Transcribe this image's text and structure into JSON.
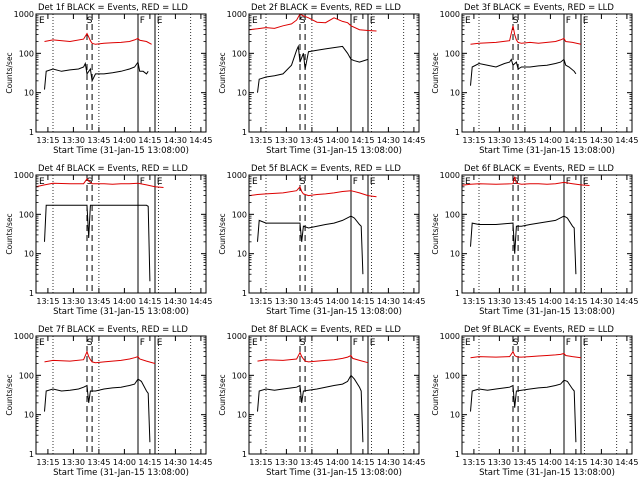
{
  "figure": {
    "background": "#ffffff",
    "colors": {
      "events": "#000000",
      "lld": "#dd0000",
      "axes": "#000000"
    },
    "common": {
      "title_suffix": "BLACK = Events, RED = LLD",
      "ylabel": "Counts/sec",
      "xlabel": "Start Time (31-Jan-15 13:08:00)",
      "x_ticks": [
        "13:15",
        "13:30",
        "13:45",
        "14:00",
        "14:15",
        "14:30",
        "14:45"
      ],
      "y_ticks": [
        "1",
        "10",
        "100",
        "1000"
      ],
      "markers": {
        "E": "E",
        "S": "S",
        "F": "F"
      }
    }
  },
  "chart_data": [
    {
      "type": "line",
      "detector": "1f",
      "title": "Det 1f BLACK = Events, RED = LLD",
      "xlabel": "Start Time (31-Jan-15 13:08:00)",
      "ylabel": "Counts/sec",
      "yscale": "log",
      "ylim": [
        1,
        1000
      ],
      "x_minutes_from_1308": [
        0,
        100
      ],
      "dotted_lines": [
        10,
        37,
        72,
        91
      ],
      "dashed_lines": [
        30,
        33
      ],
      "solid_lines": [
        60,
        70
      ],
      "series": [
        {
          "x": [
            5,
            10,
            20,
            28,
            30,
            31,
            32,
            33,
            35,
            40,
            45,
            50,
            55,
            58,
            60,
            61,
            65,
            68
          ],
          "y": [
            200,
            220,
            200,
            230,
            320,
            260,
            210,
            180,
            170,
            180,
            185,
            190,
            200,
            220,
            240,
            215,
            200,
            170
          ],
          "color": "#dd0000"
        },
        {
          "x": [
            5,
            6,
            10,
            15,
            20,
            25,
            28,
            29,
            30,
            32,
            33,
            35,
            40,
            45,
            50,
            55,
            58,
            60,
            61,
            63,
            65,
            66
          ],
          "y": [
            12,
            35,
            40,
            35,
            38,
            40,
            45,
            55,
            30,
            40,
            20,
            30,
            30,
            32,
            35,
            40,
            45,
            60,
            35,
            35,
            30,
            35
          ],
          "color": "#000000"
        }
      ]
    },
    {
      "type": "line",
      "detector": "2f",
      "title": "Det 2f BLACK = Events, RED = LLD",
      "xlabel": "Start Time (31-Jan-15 13:08:00)",
      "ylabel": "Counts/sec",
      "yscale": "log",
      "ylim": [
        1,
        1000
      ],
      "x_minutes_from_1308": [
        0,
        100
      ],
      "dotted_lines": [
        10,
        37,
        72,
        91
      ],
      "dashed_lines": [
        30,
        33
      ],
      "solid_lines": [
        60,
        70
      ],
      "series": [
        {
          "x": [
            0,
            5,
            10,
            15,
            20,
            25,
            28,
            30,
            32,
            35,
            40,
            45,
            50,
            55,
            58,
            60,
            65,
            70,
            75
          ],
          "y": [
            400,
            420,
            450,
            430,
            500,
            560,
            700,
            1000,
            900,
            800,
            620,
            600,
            800,
            650,
            600,
            500,
            400,
            380,
            370
          ],
          "color": "#dd0000"
        },
        {
          "x": [
            5,
            6,
            10,
            15,
            20,
            25,
            28,
            29,
            30,
            32,
            33,
            35,
            40,
            45,
            50,
            55,
            58,
            60,
            62,
            65,
            70
          ],
          "y": [
            10,
            22,
            25,
            27,
            30,
            50,
            120,
            150,
            60,
            100,
            40,
            110,
            120,
            130,
            140,
            150,
            100,
            70,
            65,
            60,
            70
          ],
          "color": "#000000"
        }
      ]
    },
    {
      "type": "line",
      "detector": "3f",
      "title": "Det 3f BLACK = Events, RED = LLD",
      "xlabel": "Start Time (31-Jan-15 13:08:00)",
      "ylabel": "Counts/sec",
      "yscale": "log",
      "ylim": [
        1,
        1000
      ],
      "x_minutes_from_1308": [
        0,
        100
      ],
      "dotted_lines": [
        10,
        37,
        72,
        91
      ],
      "dashed_lines": [
        30,
        33
      ],
      "solid_lines": [
        60,
        70
      ],
      "series": [
        {
          "x": [
            5,
            10,
            20,
            28,
            30,
            31,
            32,
            33,
            35,
            40,
            45,
            50,
            55,
            58,
            60,
            61,
            65,
            70
          ],
          "y": [
            170,
            180,
            190,
            210,
            500,
            300,
            220,
            190,
            180,
            190,
            180,
            190,
            200,
            220,
            240,
            200,
            190,
            170
          ],
          "color": "#dd0000"
        },
        {
          "x": [
            5,
            6,
            10,
            15,
            20,
            25,
            28,
            29,
            30,
            32,
            33,
            35,
            40,
            45,
            50,
            55,
            58,
            60,
            61,
            63,
            66,
            67
          ],
          "y": [
            15,
            45,
            55,
            50,
            45,
            55,
            60,
            70,
            50,
            60,
            40,
            45,
            45,
            48,
            50,
            55,
            60,
            70,
            50,
            45,
            35,
            30
          ],
          "color": "#000000"
        }
      ]
    },
    {
      "type": "line",
      "detector": "4f",
      "title": "Det 4f BLACK = Events, RED = LLD",
      "xlabel": "Start Time (31-Jan-15 13:08:00)",
      "ylabel": "Counts/sec",
      "yscale": "log",
      "ylim": [
        1,
        1000
      ],
      "x_minutes_from_1308": [
        0,
        100
      ],
      "dotted_lines": [
        10,
        37,
        72,
        91
      ],
      "dashed_lines": [
        30,
        33
      ],
      "solid_lines": [
        60,
        70
      ],
      "series": [
        {
          "x": [
            0,
            5,
            10,
            20,
            28,
            30,
            31,
            32,
            33,
            35,
            40,
            45,
            50,
            55,
            60,
            65,
            70,
            75
          ],
          "y": [
            500,
            560,
            620,
            600,
            600,
            800,
            700,
            650,
            600,
            600,
            600,
            580,
            600,
            600,
            620,
            560,
            500,
            480
          ],
          "color": "#dd0000"
        },
        {
          "x": [
            5,
            6,
            10,
            20,
            30,
            31,
            32,
            40,
            50,
            60,
            62,
            65,
            66,
            67
          ],
          "y": [
            20,
            170,
            170,
            170,
            170,
            25,
            170,
            170,
            170,
            170,
            170,
            170,
            160,
            2
          ],
          "color": "#000000"
        }
      ]
    },
    {
      "type": "line",
      "detector": "5f",
      "title": "Det 5f BLACK = Events, RED = LLD",
      "xlabel": "Start Time (31-Jan-15 13:08:00)",
      "ylabel": "Counts/sec",
      "yscale": "log",
      "ylim": [
        1,
        1000
      ],
      "x_minutes_from_1308": [
        0,
        100
      ],
      "dotted_lines": [
        10,
        37,
        72,
        91
      ],
      "dashed_lines": [
        30,
        33
      ],
      "solid_lines": [
        60,
        70
      ],
      "series": [
        {
          "x": [
            0,
            5,
            10,
            20,
            28,
            30,
            31,
            32,
            33,
            35,
            40,
            45,
            50,
            55,
            60,
            65,
            70,
            75
          ],
          "y": [
            300,
            320,
            330,
            350,
            400,
            500,
            380,
            330,
            320,
            300,
            320,
            330,
            350,
            380,
            400,
            350,
            300,
            280
          ],
          "color": "#dd0000"
        },
        {
          "x": [
            5,
            6,
            10,
            20,
            30,
            31,
            32,
            35,
            40,
            45,
            50,
            55,
            60,
            62,
            65,
            66,
            67
          ],
          "y": [
            20,
            70,
            60,
            60,
            60,
            20,
            50,
            45,
            50,
            55,
            60,
            70,
            90,
            80,
            55,
            50,
            3
          ],
          "color": "#000000"
        }
      ]
    },
    {
      "type": "line",
      "detector": "6f",
      "title": "Det 6f BLACK = Events, RED = LLD",
      "xlabel": "Start Time (31-Jan-15 13:08:00)",
      "ylabel": "Counts/sec",
      "yscale": "log",
      "ylim": [
        1,
        1000
      ],
      "x_minutes_from_1308": [
        0,
        100
      ],
      "dotted_lines": [
        10,
        37,
        72,
        91
      ],
      "dashed_lines": [
        30,
        33
      ],
      "solid_lines": [
        60,
        70
      ],
      "series": [
        {
          "x": [
            0,
            5,
            10,
            20,
            30,
            31,
            32,
            35,
            40,
            45,
            50,
            55,
            60,
            65,
            70,
            75
          ],
          "y": [
            550,
            580,
            600,
            580,
            600,
            900,
            620,
            580,
            600,
            600,
            580,
            600,
            650,
            600,
            560,
            540
          ],
          "color": "#dd0000"
        },
        {
          "x": [
            5,
            6,
            10,
            20,
            30,
            31,
            32,
            35,
            40,
            45,
            50,
            55,
            60,
            62,
            65,
            66,
            67
          ],
          "y": [
            15,
            60,
            55,
            55,
            60,
            10,
            50,
            50,
            55,
            60,
            65,
            70,
            90,
            80,
            50,
            45,
            3
          ],
          "color": "#000000"
        }
      ]
    },
    {
      "type": "line",
      "detector": "7f",
      "title": "Det 7f BLACK = Events, RED = LLD",
      "xlabel": "Start Time (31-Jan-15 13:08:00)",
      "ylabel": "Counts/sec",
      "yscale": "log",
      "ylim": [
        1,
        1000
      ],
      "x_minutes_from_1308": [
        0,
        100
      ],
      "dotted_lines": [
        10,
        37,
        72,
        91
      ],
      "dashed_lines": [
        30,
        33
      ],
      "solid_lines": [
        60,
        70
      ],
      "series": [
        {
          "x": [
            5,
            10,
            20,
            28,
            30,
            31,
            32,
            33,
            35,
            40,
            45,
            50,
            55,
            58,
            60,
            61,
            65,
            70
          ],
          "y": [
            220,
            240,
            230,
            250,
            400,
            300,
            250,
            220,
            210,
            220,
            230,
            240,
            260,
            280,
            300,
            260,
            230,
            200
          ],
          "color": "#dd0000"
        },
        {
          "x": [
            5,
            6,
            10,
            15,
            20,
            25,
            28,
            30,
            31,
            32,
            35,
            40,
            45,
            50,
            55,
            58,
            60,
            62,
            65,
            66,
            67
          ],
          "y": [
            12,
            40,
            45,
            40,
            42,
            45,
            50,
            55,
            20,
            40,
            40,
            45,
            48,
            50,
            55,
            60,
            80,
            70,
            40,
            35,
            2
          ],
          "color": "#000000"
        }
      ]
    },
    {
      "type": "line",
      "detector": "8f",
      "title": "Det 8f BLACK = Events, RED = LLD",
      "xlabel": "Start Time (31-Jan-15 13:08:00)",
      "ylabel": "Counts/sec",
      "yscale": "log",
      "ylim": [
        1,
        1000
      ],
      "x_minutes_from_1308": [
        0,
        100
      ],
      "dotted_lines": [
        10,
        37,
        72,
        91
      ],
      "dashed_lines": [
        30,
        33
      ],
      "solid_lines": [
        60,
        70
      ],
      "series": [
        {
          "x": [
            5,
            10,
            20,
            28,
            30,
            31,
            32,
            33,
            35,
            40,
            45,
            50,
            55,
            58,
            60,
            61,
            65,
            70
          ],
          "y": [
            230,
            250,
            240,
            260,
            380,
            300,
            260,
            230,
            220,
            230,
            240,
            250,
            270,
            290,
            320,
            270,
            240,
            210
          ],
          "color": "#dd0000"
        },
        {
          "x": [
            5,
            6,
            10,
            15,
            20,
            25,
            28,
            30,
            31,
            32,
            35,
            40,
            45,
            50,
            55,
            58,
            60,
            62,
            65,
            66,
            67
          ],
          "y": [
            12,
            40,
            45,
            42,
            45,
            48,
            50,
            55,
            20,
            40,
            42,
            45,
            50,
            55,
            60,
            70,
            100,
            80,
            50,
            40,
            2
          ],
          "color": "#000000"
        }
      ]
    },
    {
      "type": "line",
      "detector": "9f",
      "title": "Det 9f BLACK = Events, RED = LLD",
      "xlabel": "Start Time (31-Jan-15 13:08:00)",
      "ylabel": "Counts/sec",
      "yscale": "log",
      "ylim": [
        1,
        1000
      ],
      "x_minutes_from_1308": [
        0,
        100
      ],
      "dotted_lines": [
        10,
        37,
        72,
        91
      ],
      "dashed_lines": [
        30,
        33
      ],
      "solid_lines": [
        60,
        70
      ],
      "series": [
        {
          "x": [
            5,
            10,
            20,
            28,
            30,
            31,
            32,
            33,
            35,
            40,
            45,
            50,
            55,
            58,
            60,
            61,
            65,
            70
          ],
          "y": [
            280,
            300,
            290,
            300,
            400,
            320,
            300,
            290,
            290,
            300,
            310,
            320,
            330,
            340,
            360,
            320,
            300,
            280
          ],
          "color": "#dd0000"
        },
        {
          "x": [
            5,
            6,
            10,
            15,
            20,
            25,
            28,
            30,
            31,
            32,
            35,
            40,
            45,
            50,
            55,
            58,
            60,
            62,
            65,
            66,
            67
          ],
          "y": [
            12,
            40,
            45,
            42,
            45,
            48,
            50,
            55,
            15,
            40,
            42,
            45,
            48,
            50,
            55,
            60,
            75,
            70,
            45,
            40,
            2
          ],
          "color": "#000000"
        }
      ]
    }
  ]
}
